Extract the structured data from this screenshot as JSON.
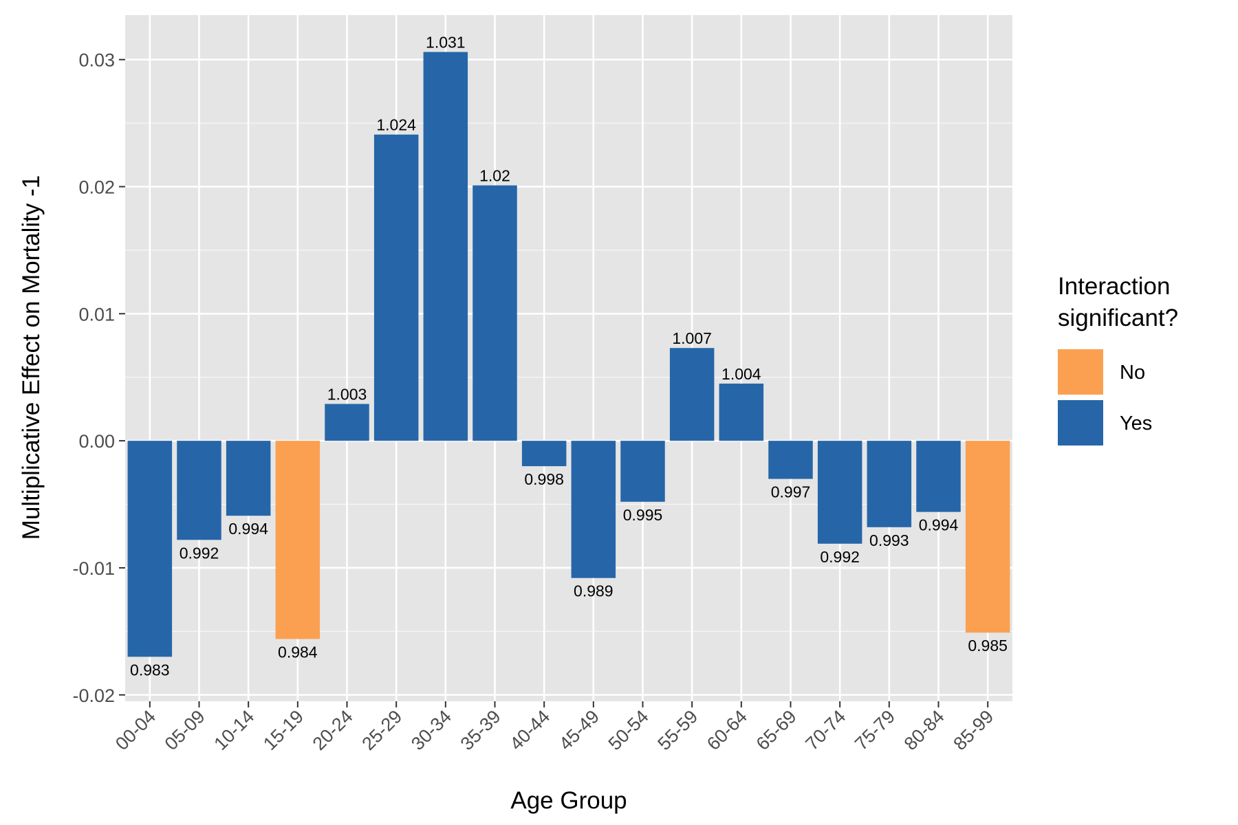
{
  "chart_data": {
    "type": "bar",
    "xlabel": "Age Group",
    "ylabel": "Multiplicative Effect on Mortality -1",
    "ylim": [
      -0.0205,
      0.0335
    ],
    "yticks": [
      -0.02,
      -0.01,
      0.0,
      0.01,
      0.02,
      0.03
    ],
    "ytick_labels": [
      "-0.02",
      "-0.01",
      "0.00",
      "0.01",
      "0.02",
      "0.03"
    ],
    "grid": true,
    "categories": [
      "00-04",
      "05-09",
      "10-14",
      "15-19",
      "20-24",
      "25-29",
      "30-34",
      "35-39",
      "40-44",
      "45-49",
      "50-54",
      "55-59",
      "60-64",
      "65-69",
      "70-74",
      "75-79",
      "80-84",
      "85-99"
    ],
    "values": [
      -0.017,
      -0.0078,
      -0.0059,
      -0.0156,
      0.0029,
      0.0241,
      0.0306,
      0.0201,
      -0.002,
      -0.0108,
      -0.0048,
      0.0073,
      0.0045,
      -0.003,
      -0.0081,
      -0.0068,
      -0.0056,
      -0.0151
    ],
    "labels": [
      "0.983",
      "0.992",
      "0.994",
      "0.984",
      "1.003",
      "1.024",
      "1.031",
      "1.02",
      "0.998",
      "0.989",
      "0.995",
      "1.007",
      "1.004",
      "0.997",
      "0.992",
      "0.993",
      "0.994",
      "0.985"
    ],
    "significant": [
      "Yes",
      "Yes",
      "Yes",
      "No",
      "Yes",
      "Yes",
      "Yes",
      "Yes",
      "Yes",
      "Yes",
      "Yes",
      "Yes",
      "Yes",
      "Yes",
      "Yes",
      "Yes",
      "Yes",
      "No"
    ],
    "legend": {
      "title_line1": "Interaction",
      "title_line2": "significant?",
      "placement": "right",
      "entries": [
        {
          "name": "No",
          "color": "#FBA051"
        },
        {
          "name": "Yes",
          "color": "#2666A8"
        }
      ]
    },
    "colors": {
      "No": "#FBA051",
      "Yes": "#2666A8",
      "panel": "#E5E5E5",
      "grid": "#FFFFFF"
    }
  }
}
